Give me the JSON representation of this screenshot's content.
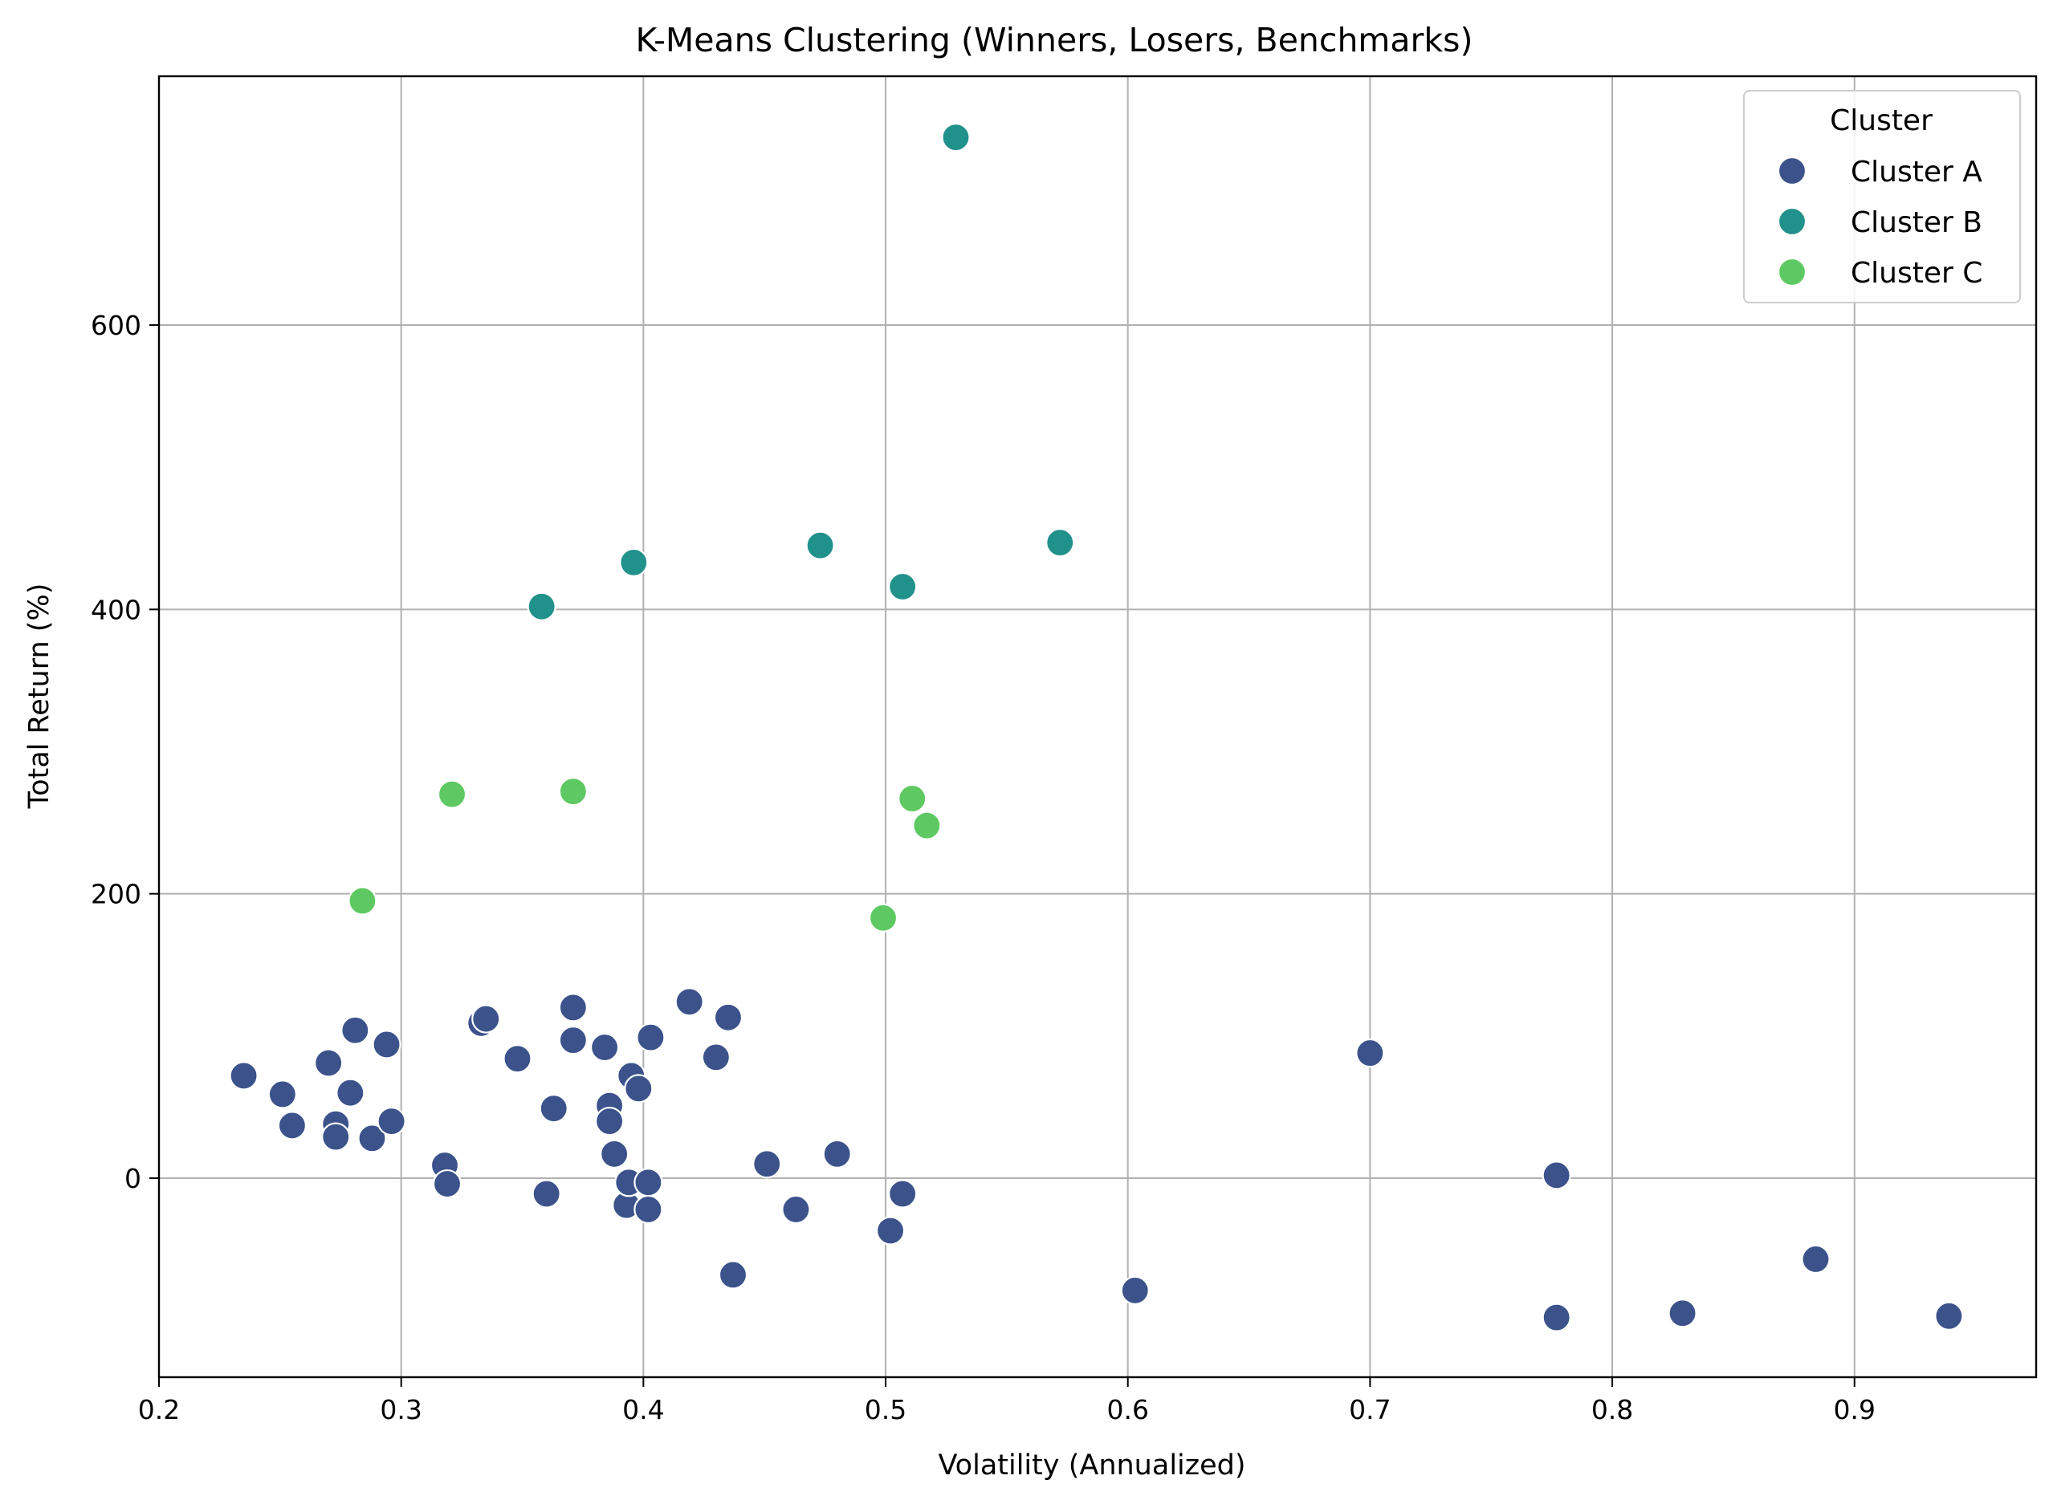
{
  "chart_data": {
    "type": "scatter",
    "title": "K-Means Clustering (Winners, Losers, Benchmarks)",
    "xlabel": "Volatility (Annualized)",
    "ylabel": "Total Return (%)",
    "xlim": [
      0.2,
      0.975
    ],
    "ylim": [
      -140,
      775
    ],
    "xticks": [
      0.2,
      0.3,
      0.4,
      0.5,
      0.6,
      0.7,
      0.8,
      0.9
    ],
    "xtick_labels": [
      "0.2",
      "0.3",
      "0.4",
      "0.5",
      "0.6",
      "0.7",
      "0.8",
      "0.9"
    ],
    "yticks": [
      0,
      200,
      400,
      600
    ],
    "ytick_labels": [
      "0",
      "200",
      "400",
      "600"
    ],
    "grid": true,
    "legend": {
      "title": "Cluster",
      "placement": "top-right"
    },
    "series": [
      {
        "name": "Cluster A",
        "color": "#3b528b",
        "points": [
          [
            0.235,
            72
          ],
          [
            0.251,
            59
          ],
          [
            0.255,
            37
          ],
          [
            0.27,
            81
          ],
          [
            0.273,
            38
          ],
          [
            0.273,
            29
          ],
          [
            0.279,
            60
          ],
          [
            0.281,
            104
          ],
          [
            0.288,
            28
          ],
          [
            0.294,
            94
          ],
          [
            0.296,
            40
          ],
          [
            0.318,
            9
          ],
          [
            0.319,
            -4
          ],
          [
            0.333,
            109
          ],
          [
            0.335,
            112
          ],
          [
            0.348,
            84
          ],
          [
            0.36,
            -11
          ],
          [
            0.363,
            49
          ],
          [
            0.371,
            120
          ],
          [
            0.371,
            97
          ],
          [
            0.384,
            92
          ],
          [
            0.386,
            51
          ],
          [
            0.386,
            40
          ],
          [
            0.388,
            17
          ],
          [
            0.393,
            -19
          ],
          [
            0.394,
            -3
          ],
          [
            0.395,
            72
          ],
          [
            0.398,
            63
          ],
          [
            0.402,
            -3
          ],
          [
            0.402,
            -22
          ],
          [
            0.403,
            99
          ],
          [
            0.419,
            124
          ],
          [
            0.43,
            85
          ],
          [
            0.435,
            113
          ],
          [
            0.437,
            -68
          ],
          [
            0.451,
            10
          ],
          [
            0.463,
            -22
          ],
          [
            0.48,
            17
          ],
          [
            0.502,
            -37
          ],
          [
            0.507,
            -11
          ],
          [
            0.603,
            -79
          ],
          [
            0.7,
            88
          ],
          [
            0.777,
            2
          ],
          [
            0.777,
            -98
          ],
          [
            0.829,
            -95
          ],
          [
            0.884,
            -57
          ],
          [
            0.939,
            -97
          ]
        ]
      },
      {
        "name": "Cluster B",
        "color": "#21918c",
        "points": [
          [
            0.358,
            402
          ],
          [
            0.396,
            433
          ],
          [
            0.473,
            445
          ],
          [
            0.507,
            416
          ],
          [
            0.529,
            732
          ],
          [
            0.572,
            447
          ]
        ]
      },
      {
        "name": "Cluster C",
        "color": "#5ec962",
        "points": [
          [
            0.284,
            195
          ],
          [
            0.321,
            270
          ],
          [
            0.371,
            272
          ],
          [
            0.499,
            183
          ],
          [
            0.511,
            267
          ],
          [
            0.517,
            248
          ]
        ]
      }
    ]
  }
}
